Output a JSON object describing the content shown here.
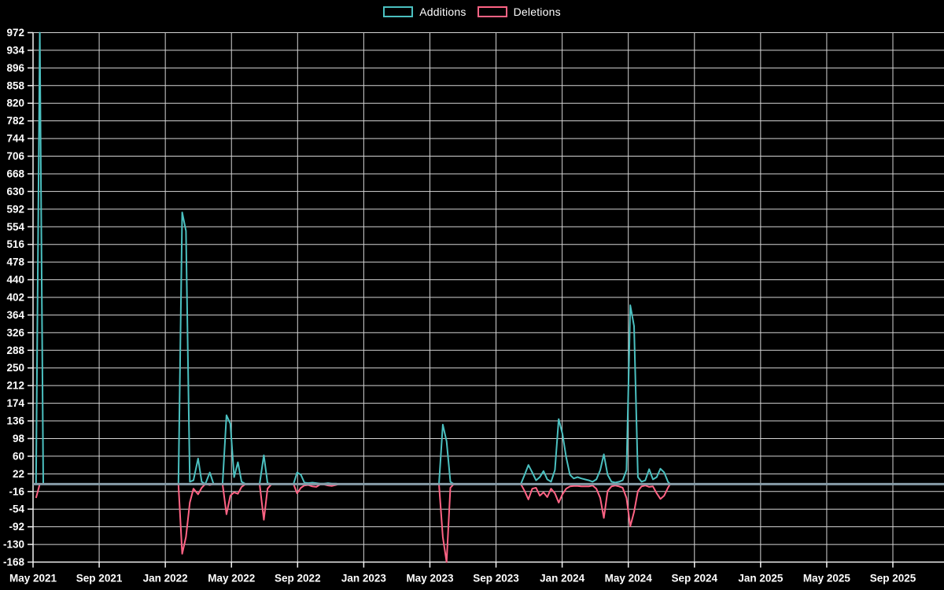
{
  "page": {
    "background": "#000000"
  },
  "chart_data": {
    "type": "line",
    "title": "",
    "legend_position": "top",
    "grid": true,
    "background": "#000000",
    "grid_color": "#d4d4d4",
    "axis_color": "#f2f2f2",
    "tick_label_color": "#ffffff",
    "zero_line_color": "#879ca8",
    "x_axis": {
      "unit": "months since May 2021",
      "min": 0,
      "max": 55.1,
      "ticks": [
        {
          "label": "May 2021",
          "m": 0
        },
        {
          "label": "Sep 2021",
          "m": 4
        },
        {
          "label": "Jan 2022",
          "m": 8
        },
        {
          "label": "May 2022",
          "m": 12
        },
        {
          "label": "Sep 2022",
          "m": 16
        },
        {
          "label": "Jan 2023",
          "m": 20
        },
        {
          "label": "May 2023",
          "m": 24
        },
        {
          "label": "Sep 2023",
          "m": 28
        },
        {
          "label": "Jan 2024",
          "m": 32
        },
        {
          "label": "May 2024",
          "m": 36
        },
        {
          "label": "Sep 2024",
          "m": 40
        },
        {
          "label": "Jan 2025",
          "m": 44
        },
        {
          "label": "May 2025",
          "m": 48
        },
        {
          "label": "Sep 2025",
          "m": 52
        }
      ]
    },
    "y_axis": {
      "min": -168,
      "max": 972,
      "step": 38,
      "ticks": [
        972,
        934,
        896,
        858,
        820,
        782,
        744,
        706,
        668,
        630,
        592,
        554,
        516,
        478,
        440,
        402,
        364,
        326,
        288,
        250,
        212,
        174,
        136,
        98,
        60,
        22,
        -16,
        -54,
        -92,
        -130,
        -168
      ]
    },
    "series": [
      {
        "name": "Additions",
        "color": "#4bc0c0"
      },
      {
        "name": "Deletions",
        "color": "#ff6384"
      }
    ],
    "points_format": [
      "months_since_may_2021",
      "additions",
      "deletions"
    ],
    "points": [
      [
        0.18,
        0,
        -30
      ],
      [
        0.41,
        972,
        0
      ],
      [
        0.62,
        0,
        0
      ],
      [
        8.79,
        0,
        0
      ],
      [
        9.02,
        585,
        -150
      ],
      [
        9.25,
        545,
        -114
      ],
      [
        9.48,
        5,
        -40
      ],
      [
        9.7,
        8,
        -10
      ],
      [
        9.98,
        55,
        -22
      ],
      [
        10.2,
        5,
        -8
      ],
      [
        10.42,
        0,
        0
      ],
      [
        10.69,
        25,
        -2
      ],
      [
        10.92,
        0,
        0
      ],
      [
        11.46,
        0,
        0
      ],
      [
        11.7,
        148,
        -65
      ],
      [
        11.93,
        130,
        -25
      ],
      [
        12.16,
        15,
        -18
      ],
      [
        12.39,
        47,
        -21
      ],
      [
        12.61,
        5,
        -6
      ],
      [
        12.85,
        0,
        0
      ],
      [
        13.7,
        0,
        0
      ],
      [
        13.96,
        62,
        -77
      ],
      [
        14.18,
        2,
        -10
      ],
      [
        14.42,
        0,
        0
      ],
      [
        15.75,
        0,
        0
      ],
      [
        15.97,
        25,
        -20
      ],
      [
        16.2,
        20,
        -8
      ],
      [
        16.41,
        3,
        -3
      ],
      [
        16.65,
        2,
        -2
      ],
      [
        16.89,
        3,
        -5
      ],
      [
        17.13,
        2,
        -6
      ],
      [
        17.36,
        1,
        -1
      ],
      [
        17.6,
        1,
        -1
      ],
      [
        17.84,
        2,
        -3
      ],
      [
        18.08,
        1,
        -4
      ],
      [
        18.31,
        1,
        -2
      ],
      [
        18.51,
        0,
        0
      ],
      [
        24.55,
        0,
        0
      ],
      [
        24.78,
        128,
        -114
      ],
      [
        25.01,
        92,
        -168
      ],
      [
        25.24,
        5,
        -8
      ],
      [
        25.45,
        0,
        0
      ],
      [
        29.5,
        0,
        0
      ],
      [
        29.73,
        20,
        -15
      ],
      [
        29.96,
        41,
        -33
      ],
      [
        30.19,
        25,
        -10
      ],
      [
        30.42,
        8,
        -8
      ],
      [
        30.65,
        15,
        -25
      ],
      [
        30.87,
        28,
        -18
      ],
      [
        31.1,
        10,
        -28
      ],
      [
        31.33,
        5,
        -10
      ],
      [
        31.56,
        30,
        -20
      ],
      [
        31.79,
        140,
        -40
      ],
      [
        32.02,
        108,
        -22
      ],
      [
        32.24,
        58,
        -10
      ],
      [
        32.47,
        20,
        -5
      ],
      [
        32.7,
        12,
        -4
      ],
      [
        32.93,
        15,
        -4
      ],
      [
        33.16,
        12,
        -5
      ],
      [
        33.38,
        10,
        -5
      ],
      [
        33.61,
        8,
        -5
      ],
      [
        33.84,
        5,
        -3
      ],
      [
        34.07,
        10,
        -10
      ],
      [
        34.3,
        30,
        -30
      ],
      [
        34.52,
        64,
        -73
      ],
      [
        34.75,
        20,
        -15
      ],
      [
        34.98,
        5,
        -5
      ],
      [
        35.21,
        3,
        -3
      ],
      [
        35.44,
        5,
        -5
      ],
      [
        35.66,
        8,
        -8
      ],
      [
        35.89,
        30,
        -30
      ],
      [
        36.12,
        385,
        -91
      ],
      [
        36.35,
        340,
        -60
      ],
      [
        36.58,
        15,
        -15
      ],
      [
        36.8,
        5,
        -5
      ],
      [
        37.03,
        8,
        -3
      ],
      [
        37.26,
        32,
        -6
      ],
      [
        37.49,
        10,
        -5
      ],
      [
        37.72,
        15,
        -20
      ],
      [
        37.94,
        33,
        -32
      ],
      [
        38.17,
        25,
        -25
      ],
      [
        38.4,
        5,
        -8
      ],
      [
        38.53,
        0,
        0
      ]
    ]
  }
}
